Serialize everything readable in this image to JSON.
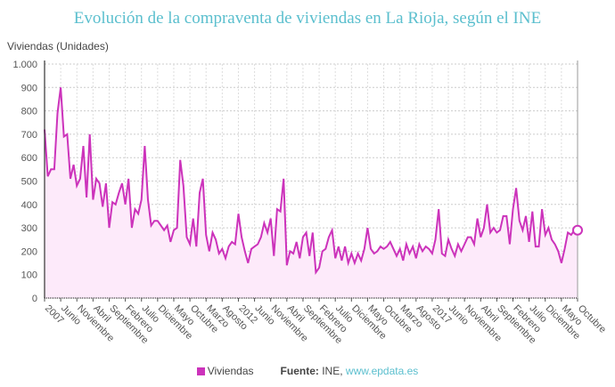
{
  "chart_data": {
    "type": "area",
    "title": "Evolución de la compraventa de viviendas en La Rioja, según el INE",
    "ylabel": "Viviendas (Unidades)",
    "xlabel": "",
    "ylim": [
      0,
      1000
    ],
    "yticks": [
      0,
      100,
      200,
      300,
      400,
      500,
      600,
      700,
      800,
      900,
      1000
    ],
    "ytick_labels": [
      "0",
      "100",
      "200",
      "300",
      "400",
      "500",
      "600",
      "700",
      "800",
      "900",
      "1.000"
    ],
    "x_start": "2007-01",
    "x_end": "2020-10",
    "xtick_labels": [
      "2007",
      "Junio",
      "Noviembre",
      "Abril",
      "Septiembre",
      "Febrero",
      "Julio",
      "Diciembre",
      "Mayo",
      "Octubre",
      "Marzo",
      "Agosto",
      "2012",
      "Junio",
      "Noviembre",
      "Abril",
      "Septiembre",
      "Febrero",
      "Julio",
      "Diciembre",
      "Mayo",
      "Octubre",
      "Marzo",
      "Agosto",
      "2017",
      "Junio",
      "Noviembre",
      "Abril",
      "Septiembre",
      "Febrero",
      "Julio",
      "Diciembre",
      "Mayo",
      "Octubre"
    ],
    "grid": true,
    "legend_position": "bottom",
    "series": [
      {
        "name": "Viviendas",
        "color": "#cc33bb",
        "fill": "#fdeafa",
        "values": [
          720,
          520,
          550,
          550,
          790,
          900,
          690,
          700,
          510,
          570,
          480,
          510,
          650,
          430,
          700,
          420,
          510,
          490,
          390,
          490,
          300,
          410,
          400,
          450,
          490,
          400,
          510,
          300,
          380,
          360,
          420,
          650,
          420,
          310,
          330,
          330,
          310,
          290,
          310,
          240,
          290,
          300,
          590,
          480,
          260,
          230,
          340,
          220,
          450,
          510,
          270,
          200,
          280,
          250,
          190,
          210,
          170,
          220,
          240,
          230,
          360,
          260,
          200,
          150,
          210,
          220,
          230,
          260,
          320,
          280,
          340,
          180,
          380,
          370,
          510,
          140,
          200,
          190,
          240,
          170,
          260,
          280,
          180,
          280,
          110,
          130,
          200,
          210,
          260,
          290,
          170,
          220,
          160,
          220,
          150,
          190,
          150,
          190,
          160,
          210,
          300,
          210,
          190,
          200,
          220,
          210,
          220,
          240,
          210,
          180,
          210,
          160,
          230,
          190,
          220,
          170,
          230,
          200,
          220,
          210,
          190,
          250,
          380,
          190,
          180,
          250,
          210,
          180,
          230,
          200,
          230,
          260,
          260,
          230,
          340,
          260,
          300,
          400,
          280,
          300,
          280,
          290,
          350,
          350,
          230,
          380,
          470,
          330,
          290,
          350,
          240,
          370,
          220,
          220,
          380,
          270,
          300,
          250,
          230,
          200,
          150,
          210,
          280,
          270,
          290,
          290
        ]
      }
    ]
  },
  "legend": {
    "series_label": "Viviendas",
    "source_label": "Fuente:",
    "source_text": "INE,",
    "source_link": "www.epdata.es"
  }
}
